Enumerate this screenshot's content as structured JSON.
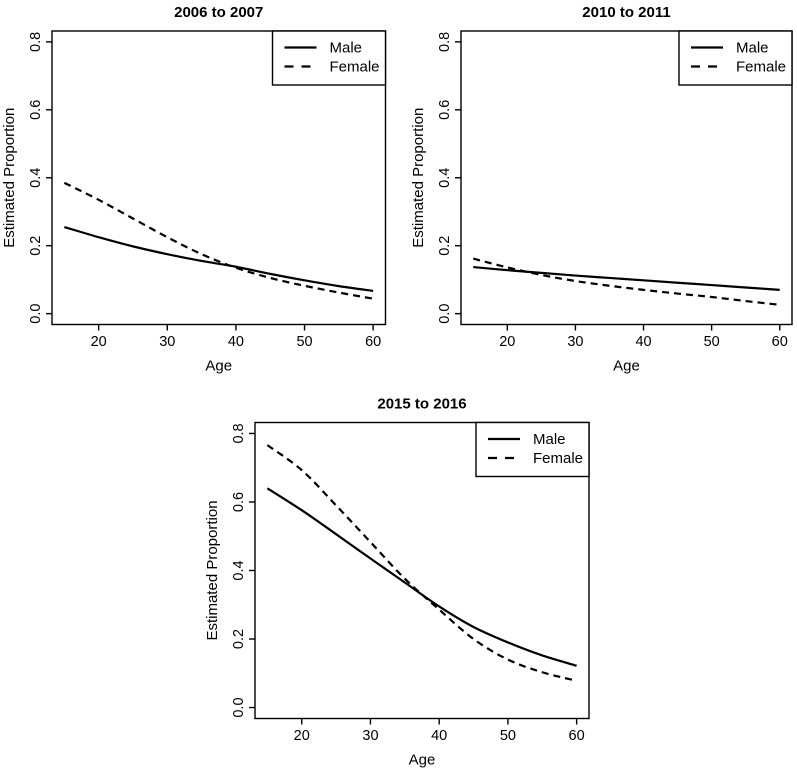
{
  "figure": {
    "background_color": "#ffffff",
    "line_color": "#000000",
    "text_color": "#000000"
  },
  "chart_data": [
    {
      "type": "line",
      "title": "2006 to 2007",
      "xlabel": "Age",
      "ylabel": "Estimated Proportion",
      "xlim": [
        15,
        60
      ],
      "ylim": [
        0.0,
        0.8
      ],
      "x_ticks": [
        20,
        30,
        40,
        50,
        60
      ],
      "x_tick_labels": [
        "20",
        "30",
        "40",
        "50",
        "60"
      ],
      "y_ticks": [
        0.0,
        0.2,
        0.4,
        0.6,
        0.8
      ],
      "y_tick_labels": [
        "0.0",
        "0.2",
        "0.4",
        "0.6",
        "0.8"
      ],
      "grid": false,
      "legend_position": "topright",
      "legend_entries": [
        {
          "label": "Male",
          "linestyle": "solid"
        },
        {
          "label": "Female",
          "linestyle": "dashed"
        }
      ],
      "x": [
        15,
        20,
        25,
        30,
        35,
        40,
        45,
        50,
        55,
        60
      ],
      "series": [
        {
          "name": "Male",
          "linestyle": "solid",
          "values": [
            0.255,
            0.225,
            0.198,
            0.175,
            0.155,
            0.138,
            0.117,
            0.098,
            0.081,
            0.067
          ]
        },
        {
          "name": "Female",
          "linestyle": "dashed",
          "values": [
            0.385,
            0.335,
            0.28,
            0.225,
            0.175,
            0.135,
            0.105,
            0.082,
            0.062,
            0.044
          ]
        }
      ]
    },
    {
      "type": "line",
      "title": "2010 to 2011",
      "xlabel": "Age",
      "ylabel": "Estimated Proportion",
      "xlim": [
        15,
        60
      ],
      "ylim": [
        0.0,
        0.8
      ],
      "x_ticks": [
        20,
        30,
        40,
        50,
        60
      ],
      "x_tick_labels": [
        "20",
        "30",
        "40",
        "50",
        "60"
      ],
      "y_ticks": [
        0.0,
        0.2,
        0.4,
        0.6,
        0.8
      ],
      "y_tick_labels": [
        "0.0",
        "0.2",
        "0.4",
        "0.6",
        "0.8"
      ],
      "grid": false,
      "legend_position": "topright",
      "legend_entries": [
        {
          "label": "Male",
          "linestyle": "solid"
        },
        {
          "label": "Female",
          "linestyle": "dashed"
        }
      ],
      "x": [
        15,
        20,
        25,
        30,
        35,
        40,
        45,
        50,
        55,
        60
      ],
      "series": [
        {
          "name": "Male",
          "linestyle": "solid",
          "values": [
            0.137,
            0.128,
            0.12,
            0.112,
            0.105,
            0.098,
            0.091,
            0.084,
            0.077,
            0.07
          ]
        },
        {
          "name": "Female",
          "linestyle": "dashed",
          "values": [
            0.162,
            0.136,
            0.114,
            0.096,
            0.082,
            0.07,
            0.059,
            0.049,
            0.037,
            0.026
          ]
        }
      ]
    },
    {
      "type": "line",
      "title": "2015 to 2016",
      "xlabel": "Age",
      "ylabel": "Estimated Proportion",
      "xlim": [
        15,
        60
      ],
      "ylim": [
        0.0,
        0.8
      ],
      "x_ticks": [
        20,
        30,
        40,
        50,
        60
      ],
      "x_tick_labels": [
        "20",
        "30",
        "40",
        "50",
        "60"
      ],
      "y_ticks": [
        0.0,
        0.2,
        0.4,
        0.6,
        0.8
      ],
      "y_tick_labels": [
        "0.0",
        "0.2",
        "0.4",
        "0.6",
        "0.8"
      ],
      "grid": false,
      "legend_position": "topright",
      "legend_entries": [
        {
          "label": "Male",
          "linestyle": "solid"
        },
        {
          "label": "Female",
          "linestyle": "dashed"
        }
      ],
      "x": [
        15,
        20,
        25,
        30,
        35,
        40,
        45,
        50,
        55,
        60
      ],
      "series": [
        {
          "name": "Male",
          "linestyle": "solid",
          "values": [
            0.64,
            0.576,
            0.506,
            0.435,
            0.365,
            0.295,
            0.235,
            0.19,
            0.152,
            0.122
          ]
        },
        {
          "name": "Female",
          "linestyle": "dashed",
          "values": [
            0.766,
            0.693,
            0.59,
            0.483,
            0.376,
            0.286,
            0.2,
            0.14,
            0.103,
            0.078
          ]
        }
      ]
    }
  ]
}
